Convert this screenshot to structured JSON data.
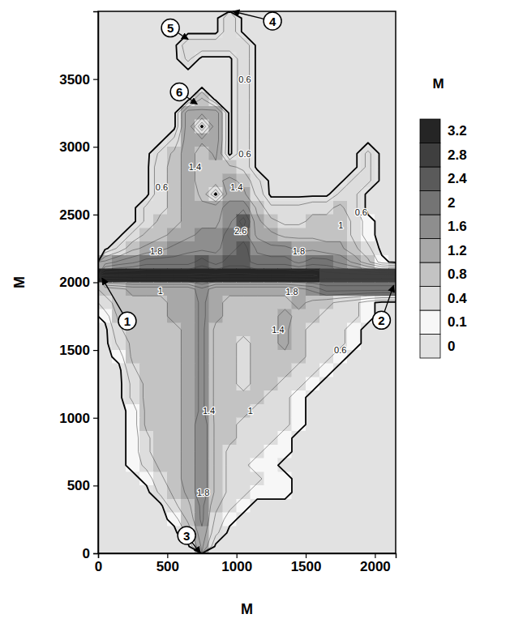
{
  "chart_data": {
    "type": "contour",
    "xlabel": "М",
    "ylabel": "М",
    "xlim": [
      0,
      2150
    ],
    "ylim": [
      0,
      4000
    ],
    "xticks": [
      0,
      500,
      1000,
      1500,
      2000
    ],
    "yticks": [
      0,
      500,
      1000,
      1500,
      2000,
      2500,
      3000,
      3500
    ],
    "x_edges": [
      0,
      100,
      200,
      300,
      400,
      500,
      600,
      700,
      800,
      900,
      1000,
      1100,
      1200,
      1300,
      1400,
      1500,
      1600,
      1700,
      1800,
      1900,
      2000,
      2100,
      2200
    ],
    "y_edges": [
      4000,
      3900,
      3800,
      3700,
      3600,
      3500,
      3400,
      3300,
      3200,
      3100,
      3000,
      2900,
      2800,
      2700,
      2600,
      2500,
      2400,
      2300,
      2200,
      2100,
      2000,
      1900,
      1800,
      1700,
      1600,
      1500,
      1400,
      1300,
      1200,
      1100,
      1000,
      900,
      800,
      700,
      600,
      500,
      400,
      300,
      200,
      100,
      0
    ],
    "z": [
      [
        0,
        0,
        0,
        0,
        0,
        0,
        0,
        0,
        0,
        0.7,
        0,
        0,
        0,
        0,
        0,
        0,
        0,
        0,
        0,
        0,
        0,
        0
      ],
      [
        0,
        0,
        0,
        0,
        0,
        0,
        0,
        0,
        0,
        0.7,
        0,
        0,
        0,
        0,
        0,
        0,
        0,
        0,
        0,
        0,
        0,
        0
      ],
      [
        0,
        0,
        0,
        0,
        0,
        0,
        0.7,
        0.7,
        0.7,
        0.7,
        0.7,
        0,
        0,
        0,
        0,
        0,
        0,
        0,
        0,
        0,
        0,
        0
      ],
      [
        0,
        0,
        0,
        0,
        0,
        0,
        0.5,
        0,
        0,
        0,
        0.7,
        0,
        0,
        0,
        0,
        0,
        0,
        0,
        0,
        0,
        0,
        0
      ],
      [
        0,
        0,
        0,
        0,
        0,
        0,
        0,
        0,
        0,
        0,
        0.7,
        0,
        0,
        0,
        0,
        0,
        0,
        0,
        0,
        0,
        0,
        0
      ],
      [
        0,
        0,
        0,
        0,
        0,
        0,
        0,
        0,
        0,
        0,
        0.7,
        0,
        0,
        0,
        0,
        0,
        0,
        0,
        0,
        0,
        0,
        0
      ],
      [
        0,
        0,
        0,
        0,
        0,
        0,
        0,
        0.9,
        0,
        0,
        0.7,
        0,
        0,
        0,
        0,
        0,
        0,
        0,
        0,
        0,
        0,
        0
      ],
      [
        0,
        0,
        0,
        0,
        0,
        0,
        1.5,
        1.3,
        1.5,
        0,
        0.7,
        0,
        0,
        0,
        0,
        0,
        0,
        0,
        0,
        0,
        0,
        0
      ],
      [
        0,
        0,
        0,
        0,
        0,
        0,
        1.5,
        0,
        1.5,
        0,
        0.7,
        0,
        0,
        0,
        0,
        0,
        0,
        0,
        0,
        0,
        0,
        0
      ],
      [
        0,
        0,
        0,
        0,
        0,
        0.5,
        1.5,
        1.3,
        1.5,
        0,
        0.7,
        0,
        0,
        0,
        0,
        0,
        0,
        0,
        0,
        0,
        0,
        0
      ],
      [
        0,
        0,
        0,
        0,
        0.5,
        0.9,
        1.5,
        0.9,
        1.3,
        0,
        0.7,
        0,
        0,
        0,
        0,
        0,
        0,
        0,
        0,
        0.5,
        0,
        0
      ],
      [
        0,
        0,
        0,
        0,
        0.7,
        0.9,
        1.5,
        0.9,
        1.1,
        0.9,
        0.7,
        0,
        0,
        0,
        0,
        0,
        0,
        0,
        0,
        0.5,
        0,
        0
      ],
      [
        0,
        0,
        0,
        0,
        0.7,
        0.9,
        1.5,
        0.9,
        1.1,
        1.3,
        1.1,
        0.5,
        0,
        0,
        0,
        0,
        0,
        0,
        0.5,
        0.5,
        0,
        0
      ],
      [
        0,
        0,
        0,
        0,
        0.7,
        0.9,
        1.5,
        1.1,
        0,
        1.5,
        1.3,
        0.7,
        0,
        0,
        0,
        0,
        0,
        0.5,
        0.5,
        0,
        0,
        0
      ],
      [
        0,
        0,
        0,
        0.5,
        0.7,
        0.9,
        1.5,
        1.3,
        1.5,
        1.7,
        1.9,
        1.1,
        0.5,
        0.5,
        0.5,
        0.7,
        0.7,
        0.9,
        0.5,
        0,
        0,
        0
      ],
      [
        0,
        0,
        0,
        0.5,
        0.9,
        1.1,
        1.3,
        1.5,
        1.5,
        1.9,
        2.6,
        1.3,
        0.9,
        0.7,
        0.7,
        0.9,
        0.9,
        1.1,
        0.7,
        0.2,
        0,
        0
      ],
      [
        0,
        0,
        0.5,
        0.9,
        1.1,
        1.3,
        1.5,
        1.7,
        1.7,
        2.2,
        2.2,
        1.5,
        1.3,
        1.1,
        1.1,
        1.1,
        1.1,
        1.1,
        0.7,
        0.2,
        0,
        0
      ],
      [
        0,
        0.5,
        1.1,
        1.3,
        1.5,
        1.7,
        1.9,
        1.9,
        1.9,
        2.2,
        2.6,
        1.9,
        1.7,
        1.7,
        1.5,
        1.5,
        1.3,
        1.3,
        0.9,
        0.5,
        0,
        0
      ],
      [
        1.3,
        1.7,
        1.9,
        2.2,
        2.2,
        2.2,
        2.2,
        2.6,
        2.2,
        2.6,
        2.6,
        2.2,
        2.2,
        2.2,
        1.9,
        2.2,
        2.2,
        1.9,
        1.5,
        0.9,
        0.2,
        0
      ],
      [
        3.3,
        3.3,
        3.3,
        3.3,
        3.3,
        3.3,
        3.3,
        3.3,
        3.3,
        3.3,
        3.3,
        3.3,
        3.3,
        3.3,
        3.3,
        3.3,
        3,
        3,
        3,
        3,
        3,
        3
      ],
      [
        0.9,
        1.1,
        1.3,
        1.3,
        1.3,
        1.3,
        1.3,
        1.9,
        1.3,
        1.3,
        1.3,
        1.3,
        1.3,
        1.3,
        1.5,
        1.7,
        2.2,
        2.2,
        2.2,
        2.2,
        2.2,
        2.2
      ],
      [
        0.7,
        0.9,
        1.1,
        1.1,
        1.1,
        1.3,
        1.3,
        1.7,
        1.3,
        1.1,
        1.1,
        1.1,
        1.1,
        1.1,
        1.3,
        1.1,
        0.9,
        0.7,
        0.5,
        0.2,
        0,
        0
      ],
      [
        0.2,
        0.9,
        1.1,
        1.1,
        1.1,
        1.3,
        1.3,
        1.7,
        1.3,
        1.1,
        0.9,
        0.9,
        1.1,
        1.3,
        1.1,
        0.9,
        0.7,
        0.5,
        0.5,
        0.2,
        0,
        0
      ],
      [
        0,
        0.7,
        1.1,
        1.1,
        1.1,
        1.1,
        1.3,
        1.7,
        1.1,
        0.9,
        0.9,
        0.9,
        1.1,
        1.3,
        0.9,
        0.7,
        0.7,
        0.5,
        0.2,
        0,
        0,
        0
      ],
      [
        0,
        0.5,
        0.9,
        1.1,
        1.1,
        1.1,
        1.3,
        1.7,
        1.1,
        0.9,
        0.7,
        0.9,
        1.1,
        1.3,
        0.9,
        0.7,
        0.5,
        0.5,
        0.2,
        0,
        0,
        0
      ],
      [
        0,
        0.2,
        0.9,
        1.1,
        1.1,
        1.1,
        1.3,
        1.7,
        1.1,
        0.9,
        0.7,
        0.9,
        1.1,
        1.1,
        0.9,
        0.7,
        0.5,
        0.2,
        0,
        0,
        0,
        0
      ],
      [
        0,
        0,
        0.7,
        1.1,
        1.1,
        1.1,
        1.3,
        1.7,
        1.1,
        0.9,
        0.7,
        0.9,
        0.9,
        0.9,
        0.7,
        0.5,
        0.2,
        0,
        0,
        0,
        0,
        0
      ],
      [
        0,
        0,
        0.5,
        0.9,
        1.1,
        1.1,
        1.3,
        1.7,
        1.1,
        0.9,
        0.7,
        0.9,
        0.9,
        0.7,
        0.5,
        0.2,
        0,
        0,
        0,
        0,
        0,
        0
      ],
      [
        0,
        0,
        0.5,
        0.9,
        1.1,
        1.1,
        1.3,
        1.7,
        1.1,
        0.9,
        0.9,
        0.9,
        0.7,
        0.5,
        0.2,
        0,
        0,
        0,
        0,
        0,
        0,
        0
      ],
      [
        0,
        0,
        0.2,
        0.9,
        1.1,
        1.1,
        1.3,
        1.7,
        1.1,
        0.9,
        0.9,
        0.7,
        0.7,
        0.5,
        0.2,
        0,
        0,
        0,
        0,
        0,
        0,
        0
      ],
      [
        0,
        0,
        0.2,
        0.9,
        1.1,
        1.1,
        1.3,
        1.9,
        1.1,
        0.9,
        0.7,
        0.7,
        0.5,
        0.5,
        0.2,
        0,
        0,
        0,
        0,
        0,
        0,
        0
      ],
      [
        0,
        0,
        0.2,
        0.7,
        1.1,
        1.1,
        1.3,
        1.9,
        1.1,
        0.9,
        0.7,
        0.5,
        0.5,
        0.2,
        0,
        0,
        0,
        0,
        0,
        0,
        0,
        0
      ],
      [
        0,
        0,
        0.2,
        0.7,
        1.1,
        1.1,
        1.3,
        1.9,
        1.1,
        0.7,
        0.5,
        0.5,
        0.2,
        0.2,
        0,
        0,
        0,
        0,
        0,
        0,
        0,
        0
      ],
      [
        0,
        0,
        0.2,
        0.5,
        0.9,
        1.1,
        1.3,
        1.9,
        1.1,
        0.7,
        0.5,
        0.2,
        0.2,
        0,
        0,
        0,
        0,
        0,
        0,
        0,
        0,
        0
      ],
      [
        0,
        0,
        0,
        0.2,
        0.7,
        1.1,
        1.3,
        1.9,
        1.1,
        0.7,
        0.5,
        0.5,
        0.2,
        0.2,
        0,
        0,
        0,
        0,
        0,
        0,
        0,
        0
      ],
      [
        0,
        0,
        0,
        0,
        0.5,
        0.9,
        1.3,
        1.9,
        1.1,
        0.7,
        0.5,
        0.2,
        0.2,
        0.2,
        0,
        0,
        0,
        0,
        0,
        0,
        0,
        0
      ],
      [
        0,
        0,
        0,
        0,
        0,
        0.7,
        1.1,
        1.7,
        0.9,
        0.5,
        0.2,
        0,
        0,
        0,
        0,
        0,
        0,
        0,
        0,
        0,
        0,
        0
      ],
      [
        0,
        0,
        0,
        0,
        0,
        0.2,
        0.9,
        1.7,
        0.7,
        0.2,
        0,
        0,
        0,
        0,
        0,
        0,
        0,
        0,
        0,
        0,
        0,
        0
      ],
      [
        0,
        0,
        0,
        0,
        0,
        0,
        0.5,
        1.5,
        0.5,
        0,
        0,
        0,
        0,
        0,
        0,
        0,
        0,
        0,
        0,
        0,
        0,
        0
      ],
      [
        0,
        0,
        0,
        0,
        0,
        0,
        0,
        1.3,
        0,
        0,
        0,
        0,
        0,
        0,
        0,
        0,
        0,
        0,
        0,
        0,
        0,
        0
      ]
    ],
    "colorbar": {
      "title": "М",
      "levels": [
        0,
        0.1,
        0.4,
        0.8,
        1.2,
        1.6,
        2,
        2.4,
        2.8,
        3.2
      ]
    },
    "annotations": [
      {
        "text": "1",
        "x": 29,
        "y": 2031
      },
      {
        "text": "2",
        "x": 2135,
        "y": 1977
      },
      {
        "text": "3",
        "x": 739,
        "y": 0
      },
      {
        "text": "4",
        "x": 973,
        "y": 4000
      },
      {
        "text": "5",
        "x": 651,
        "y": 3793
      },
      {
        "text": "6",
        "x": 716,
        "y": 3315
      }
    ],
    "contour_labels": [
      {
        "x": 1060,
        "y": 3500,
        "value": 0.6
      },
      {
        "x": 1060,
        "y": 2950,
        "value": 0.6
      },
      {
        "x": 700,
        "y": 2850,
        "value": 1.4
      },
      {
        "x": 460,
        "y": 2700,
        "value": 0.6
      },
      {
        "x": 1000,
        "y": 2700,
        "value": 1.4
      },
      {
        "x": 1030,
        "y": 2380,
        "value": 2.6
      },
      {
        "x": 420,
        "y": 2230,
        "value": 1.8
      },
      {
        "x": 1450,
        "y": 2230,
        "value": 1.8
      },
      {
        "x": 1753,
        "y": 2420,
        "value": 1
      },
      {
        "x": 1900,
        "y": 2515,
        "value": 0.6
      },
      {
        "x": 450,
        "y": 1940,
        "value": 1
      },
      {
        "x": 1400,
        "y": 1930,
        "value": 1.8
      },
      {
        "x": 1300,
        "y": 1650,
        "value": 1.4
      },
      {
        "x": 1750,
        "y": 1500,
        "value": 0.6
      },
      {
        "x": 1100,
        "y": 1050,
        "value": 1
      },
      {
        "x": 800,
        "y": 1050,
        "value": 1.4
      },
      {
        "x": 760,
        "y": 450,
        "value": 1.8
      }
    ]
  }
}
